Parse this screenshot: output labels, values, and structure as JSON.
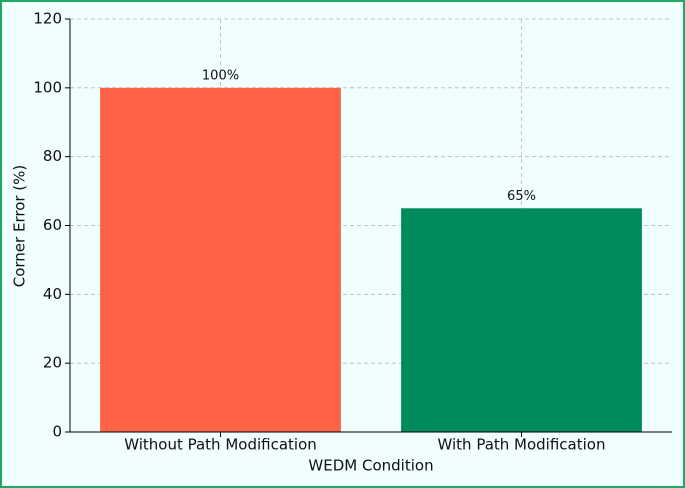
{
  "chart_data": {
    "type": "bar",
    "categories": [
      "Without Path Modification",
      "With Path Modification"
    ],
    "values": [
      100,
      65
    ],
    "value_labels": [
      "100%",
      "65%"
    ],
    "colors": [
      "#ff6347",
      "#008b5e"
    ],
    "x_label": "WEDM Condition",
    "y_label": "Corner Error (%)",
    "ylim": [
      0,
      120
    ],
    "yticks": [
      0,
      20,
      40,
      60,
      80,
      100,
      120
    ],
    "grid": true
  }
}
